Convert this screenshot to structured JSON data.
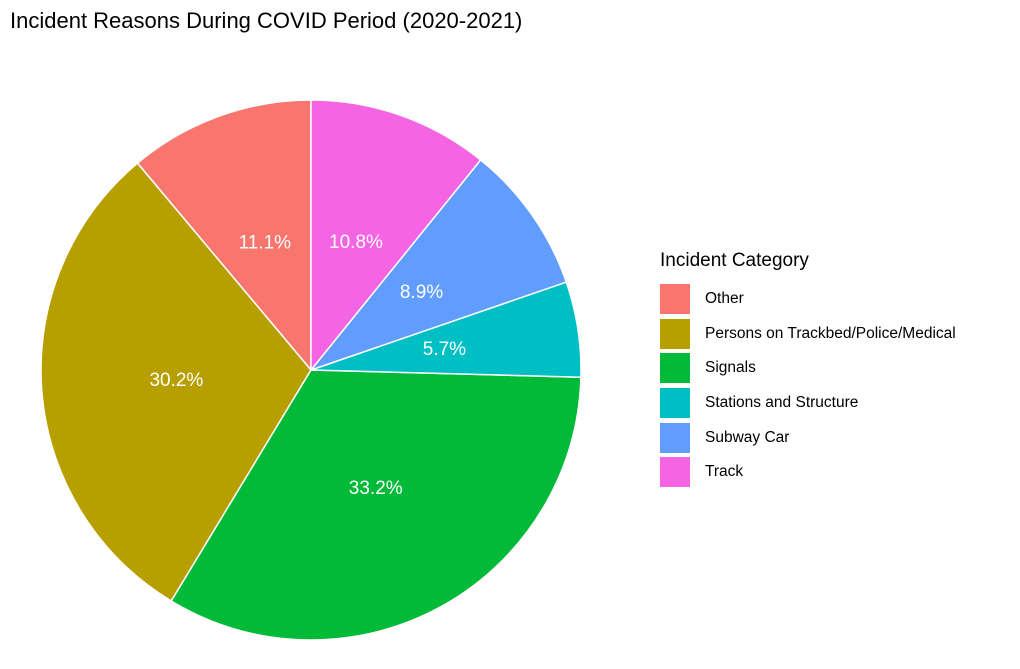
{
  "chart_data": {
    "type": "pie",
    "title": "Incident Reasons During COVID Period (2020-2021)",
    "legend_title": "Incident Category",
    "legend_position": "right",
    "slices": [
      {
        "label": "Other",
        "value": 11.1,
        "display": "11.1%",
        "color": "#F8766D"
      },
      {
        "label": "Persons on Trackbed/Police/Medical",
        "value": 30.2,
        "display": "30.2%",
        "color": "#B79F00"
      },
      {
        "label": "Signals",
        "value": 33.2,
        "display": "33.2%",
        "color": "#00BA38"
      },
      {
        "label": "Stations and Structure",
        "value": 5.7,
        "display": "5.7%",
        "color": "#00BFC4"
      },
      {
        "label": "Subway Car",
        "value": 8.9,
        "display": "8.9%",
        "color": "#619CFF"
      },
      {
        "label": "Track",
        "value": 10.8,
        "display": "10.8%",
        "color": "#F564E3"
      }
    ]
  }
}
